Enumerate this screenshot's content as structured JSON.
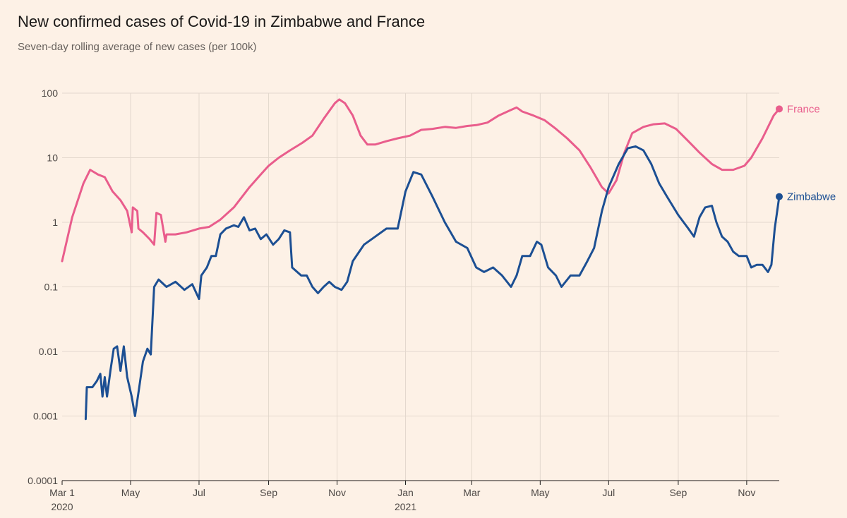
{
  "chart_data": {
    "type": "line",
    "title": "New confirmed cases of Covid-19 in Zimbabwe and France",
    "subtitle": "Seven-day rolling average of new cases (per 100k)",
    "yscale": "log",
    "ylim": [
      0.0001,
      100
    ],
    "yticks": [
      {
        "value": 0.0001,
        "label": "0.0001"
      },
      {
        "value": 0.001,
        "label": "0.001"
      },
      {
        "value": 0.01,
        "label": "0.01"
      },
      {
        "value": 0.1,
        "label": "0.1"
      },
      {
        "value": 1,
        "label": "1"
      },
      {
        "value": 10,
        "label": "10"
      },
      {
        "value": 100,
        "label": "100"
      }
    ],
    "xlim": [
      "2020-03-01",
      "2021-11-30"
    ],
    "xticks": [
      {
        "date": "2020-03-01",
        "label": "Mar 1",
        "year": "2020"
      },
      {
        "date": "2020-05-01",
        "label": "May",
        "year": ""
      },
      {
        "date": "2020-07-01",
        "label": "Jul",
        "year": ""
      },
      {
        "date": "2020-09-01",
        "label": "Sep",
        "year": ""
      },
      {
        "date": "2020-11-01",
        "label": "Nov",
        "year": ""
      },
      {
        "date": "2021-01-01",
        "label": "Jan",
        "year": "2021"
      },
      {
        "date": "2021-03-01",
        "label": "Mar",
        "year": ""
      },
      {
        "date": "2021-05-01",
        "label": "May",
        "year": ""
      },
      {
        "date": "2021-07-01",
        "label": "Jul",
        "year": ""
      },
      {
        "date": "2021-09-01",
        "label": "Sep",
        "year": ""
      },
      {
        "date": "2021-11-01",
        "label": "Nov",
        "year": ""
      }
    ],
    "grid": true,
    "series": [
      {
        "name": "France",
        "color": "#e95d8c",
        "points": [
          [
            "2020-03-01",
            0.25
          ],
          [
            "2020-03-10",
            1.2
          ],
          [
            "2020-03-20",
            4.0
          ],
          [
            "2020-03-26",
            6.5
          ],
          [
            "2020-04-02",
            5.5
          ],
          [
            "2020-04-08",
            5.0
          ],
          [
            "2020-04-15",
            3.0
          ],
          [
            "2020-04-22",
            2.2
          ],
          [
            "2020-04-28",
            1.5
          ],
          [
            "2020-05-02",
            0.7
          ],
          [
            "2020-05-03",
            1.7
          ],
          [
            "2020-05-07",
            1.5
          ],
          [
            "2020-05-08",
            0.8
          ],
          [
            "2020-05-12",
            0.7
          ],
          [
            "2020-05-18",
            0.55
          ],
          [
            "2020-05-22",
            0.45
          ],
          [
            "2020-05-24",
            1.4
          ],
          [
            "2020-05-28",
            1.3
          ],
          [
            "2020-06-01",
            0.5
          ],
          [
            "2020-06-02",
            0.65
          ],
          [
            "2020-06-10",
            0.65
          ],
          [
            "2020-06-20",
            0.7
          ],
          [
            "2020-07-01",
            0.8
          ],
          [
            "2020-07-10",
            0.85
          ],
          [
            "2020-07-20",
            1.1
          ],
          [
            "2020-08-01",
            1.7
          ],
          [
            "2020-08-15",
            3.5
          ],
          [
            "2020-08-25",
            5.5
          ],
          [
            "2020-09-01",
            7.5
          ],
          [
            "2020-09-10",
            10
          ],
          [
            "2020-09-20",
            13
          ],
          [
            "2020-10-01",
            17
          ],
          [
            "2020-10-10",
            22
          ],
          [
            "2020-10-20",
            40
          ],
          [
            "2020-10-30",
            70
          ],
          [
            "2020-11-03",
            80
          ],
          [
            "2020-11-08",
            70
          ],
          [
            "2020-11-15",
            45
          ],
          [
            "2020-11-22",
            22
          ],
          [
            "2020-11-28",
            16
          ],
          [
            "2020-12-05",
            16
          ],
          [
            "2020-12-15",
            18
          ],
          [
            "2020-12-25",
            20
          ],
          [
            "2021-01-05",
            22
          ],
          [
            "2021-01-15",
            27
          ],
          [
            "2021-01-25",
            28
          ],
          [
            "2021-02-05",
            30
          ],
          [
            "2021-02-15",
            29
          ],
          [
            "2021-02-25",
            31
          ],
          [
            "2021-03-05",
            32
          ],
          [
            "2021-03-15",
            35
          ],
          [
            "2021-03-25",
            45
          ],
          [
            "2021-04-05",
            55
          ],
          [
            "2021-04-10",
            60
          ],
          [
            "2021-04-15",
            52
          ],
          [
            "2021-04-25",
            45
          ],
          [
            "2021-05-05",
            38
          ],
          [
            "2021-05-15",
            28
          ],
          [
            "2021-05-25",
            20
          ],
          [
            "2021-06-05",
            13
          ],
          [
            "2021-06-15",
            7
          ],
          [
            "2021-06-25",
            3.5
          ],
          [
            "2021-07-01",
            2.8
          ],
          [
            "2021-07-08",
            4.5
          ],
          [
            "2021-07-15",
            12
          ],
          [
            "2021-07-22",
            24
          ],
          [
            "2021-08-01",
            30
          ],
          [
            "2021-08-10",
            33
          ],
          [
            "2021-08-20",
            34
          ],
          [
            "2021-08-30",
            28
          ],
          [
            "2021-09-10",
            18
          ],
          [
            "2021-09-20",
            12
          ],
          [
            "2021-10-01",
            8
          ],
          [
            "2021-10-10",
            6.5
          ],
          [
            "2021-10-20",
            6.5
          ],
          [
            "2021-10-30",
            7.5
          ],
          [
            "2021-11-05",
            10
          ],
          [
            "2021-11-15",
            20
          ],
          [
            "2021-11-25",
            45
          ],
          [
            "2021-11-30",
            57
          ]
        ]
      },
      {
        "name": "Zimbabwe",
        "color": "#1c4f93",
        "points": [
          [
            "2020-03-22",
            0.0009
          ],
          [
            "2020-03-23",
            0.0028
          ],
          [
            "2020-03-28",
            0.0028
          ],
          [
            "2020-04-01",
            0.0035
          ],
          [
            "2020-04-04",
            0.0045
          ],
          [
            "2020-04-06",
            0.002
          ],
          [
            "2020-04-08",
            0.004
          ],
          [
            "2020-04-10",
            0.002
          ],
          [
            "2020-04-13",
            0.005
          ],
          [
            "2020-04-16",
            0.011
          ],
          [
            "2020-04-19",
            0.012
          ],
          [
            "2020-04-22",
            0.005
          ],
          [
            "2020-04-25",
            0.012
          ],
          [
            "2020-04-28",
            0.004
          ],
          [
            "2020-05-02",
            0.002
          ],
          [
            "2020-05-05",
            0.001
          ],
          [
            "2020-05-09",
            0.003
          ],
          [
            "2020-05-12",
            0.007
          ],
          [
            "2020-05-16",
            0.011
          ],
          [
            "2020-05-19",
            0.009
          ],
          [
            "2020-05-22",
            0.1
          ],
          [
            "2020-05-26",
            0.13
          ],
          [
            "2020-06-02",
            0.1
          ],
          [
            "2020-06-10",
            0.12
          ],
          [
            "2020-06-18",
            0.09
          ],
          [
            "2020-06-25",
            0.11
          ],
          [
            "2020-07-01",
            0.065
          ],
          [
            "2020-07-03",
            0.15
          ],
          [
            "2020-07-08",
            0.2
          ],
          [
            "2020-07-12",
            0.3
          ],
          [
            "2020-07-16",
            0.3
          ],
          [
            "2020-07-20",
            0.65
          ],
          [
            "2020-07-25",
            0.8
          ],
          [
            "2020-08-01",
            0.9
          ],
          [
            "2020-08-05",
            0.85
          ],
          [
            "2020-08-10",
            1.2
          ],
          [
            "2020-08-15",
            0.75
          ],
          [
            "2020-08-20",
            0.8
          ],
          [
            "2020-08-25",
            0.55
          ],
          [
            "2020-08-30",
            0.65
          ],
          [
            "2020-09-05",
            0.45
          ],
          [
            "2020-09-10",
            0.55
          ],
          [
            "2020-09-15",
            0.75
          ],
          [
            "2020-09-20",
            0.7
          ],
          [
            "2020-09-22",
            0.2
          ],
          [
            "2020-09-30",
            0.15
          ],
          [
            "2020-10-05",
            0.15
          ],
          [
            "2020-10-10",
            0.1
          ],
          [
            "2020-10-15",
            0.08
          ],
          [
            "2020-10-20",
            0.1
          ],
          [
            "2020-10-25",
            0.12
          ],
          [
            "2020-10-30",
            0.1
          ],
          [
            "2020-11-05",
            0.09
          ],
          [
            "2020-11-10",
            0.12
          ],
          [
            "2020-11-15",
            0.25
          ],
          [
            "2020-11-25",
            0.45
          ],
          [
            "2020-12-05",
            0.6
          ],
          [
            "2020-12-15",
            0.8
          ],
          [
            "2020-12-25",
            0.8
          ],
          [
            "2021-01-01",
            3.0
          ],
          [
            "2021-01-08",
            6.0
          ],
          [
            "2021-01-15",
            5.5
          ],
          [
            "2021-01-25",
            2.5
          ],
          [
            "2021-02-05",
            1.0
          ],
          [
            "2021-02-15",
            0.5
          ],
          [
            "2021-02-25",
            0.4
          ],
          [
            "2021-03-05",
            0.2
          ],
          [
            "2021-03-12",
            0.17
          ],
          [
            "2021-03-20",
            0.2
          ],
          [
            "2021-03-28",
            0.15
          ],
          [
            "2021-04-05",
            0.1
          ],
          [
            "2021-04-10",
            0.15
          ],
          [
            "2021-04-15",
            0.3
          ],
          [
            "2021-04-22",
            0.3
          ],
          [
            "2021-04-28",
            0.5
          ],
          [
            "2021-05-02",
            0.45
          ],
          [
            "2021-05-08",
            0.2
          ],
          [
            "2021-05-15",
            0.15
          ],
          [
            "2021-05-20",
            0.1
          ],
          [
            "2021-05-28",
            0.15
          ],
          [
            "2021-06-05",
            0.15
          ],
          [
            "2021-06-12",
            0.25
          ],
          [
            "2021-06-18",
            0.4
          ],
          [
            "2021-06-25",
            1.5
          ],
          [
            "2021-07-01",
            3.5
          ],
          [
            "2021-07-10",
            8
          ],
          [
            "2021-07-18",
            14
          ],
          [
            "2021-07-25",
            15
          ],
          [
            "2021-08-01",
            13
          ],
          [
            "2021-08-08",
            8
          ],
          [
            "2021-08-15",
            4
          ],
          [
            "2021-08-22",
            2.5
          ],
          [
            "2021-09-01",
            1.3
          ],
          [
            "2021-09-10",
            0.8
          ],
          [
            "2021-09-15",
            0.6
          ],
          [
            "2021-09-20",
            1.2
          ],
          [
            "2021-09-25",
            1.7
          ],
          [
            "2021-10-01",
            1.8
          ],
          [
            "2021-10-05",
            1.0
          ],
          [
            "2021-10-10",
            0.6
          ],
          [
            "2021-10-15",
            0.5
          ],
          [
            "2021-10-20",
            0.35
          ],
          [
            "2021-10-25",
            0.3
          ],
          [
            "2021-11-01",
            0.3
          ],
          [
            "2021-11-05",
            0.2
          ],
          [
            "2021-11-10",
            0.22
          ],
          [
            "2021-11-15",
            0.22
          ],
          [
            "2021-11-20",
            0.17
          ],
          [
            "2021-11-23",
            0.22
          ],
          [
            "2021-11-26",
            0.8
          ],
          [
            "2021-11-30",
            2.5
          ]
        ]
      }
    ]
  }
}
